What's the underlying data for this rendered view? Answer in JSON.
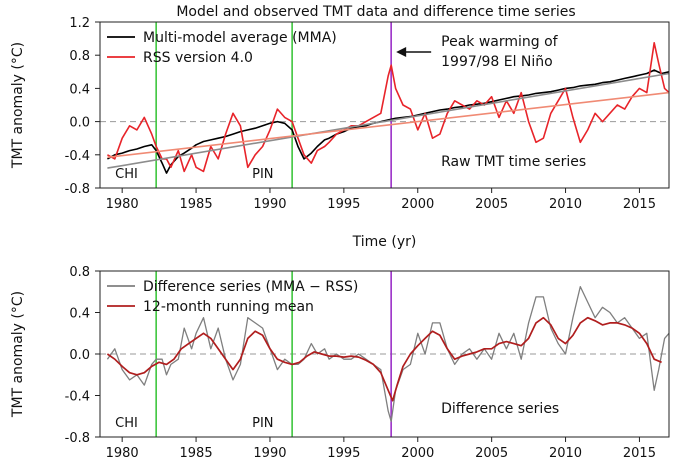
{
  "figure_title": "Model and observed TMT data and difference time series",
  "colors": {
    "mma": "#000000",
    "rss": "#e8242a",
    "trend_mma": "#8c8c8c",
    "trend_rss": "#f08a74",
    "difference": "#7f7f7f",
    "running_mean": "#b01e1e",
    "event_volcano": "#3ec63e",
    "event_elnino": "#9b30c8",
    "zero_line": "#9a9a9a"
  },
  "chart_data": [
    {
      "type": "line",
      "title": "Model and observed TMT data and difference time series",
      "xlabel": "Time (yr)",
      "ylabel": "TMT anomaly (°C)",
      "xlim": [
        1978.5,
        2017
      ],
      "ylim": [
        -0.8,
        1.2
      ],
      "xticks": [
        1980,
        1985,
        1990,
        1995,
        2000,
        2005,
        2010,
        2015
      ],
      "yticks": [
        "-0.8",
        "-0.4",
        "0.0",
        "0.4",
        "0.8",
        "1.2"
      ],
      "legend_position": "top-left",
      "panel_label": "Raw TMT time series",
      "annotation": {
        "line1": "Peak warming of",
        "line2": "1997/98 El Niño",
        "x": 1998.2
      },
      "event_lines": [
        {
          "label": "CHI",
          "x": 1982.3,
          "color": "event_volcano"
        },
        {
          "label": "PIN",
          "x": 1991.5,
          "color": "event_volcano"
        },
        {
          "label": "",
          "x": 1998.2,
          "color": "event_elnino"
        }
      ],
      "series": [
        {
          "name": "Multi-model average (MMA)",
          "color": "mma",
          "x": [
            1979.0,
            1979.5,
            1980.0,
            1980.5,
            1981.0,
            1981.5,
            1982.0,
            1982.3,
            1982.7,
            1983.0,
            1983.3,
            1983.8,
            1984.2,
            1984.7,
            1985.0,
            1985.5,
            1986.0,
            1986.5,
            1987.0,
            1987.5,
            1988.0,
            1988.5,
            1989.0,
            1989.5,
            1990.0,
            1990.5,
            1991.0,
            1991.5,
            1991.9,
            1992.3,
            1992.8,
            1993.2,
            1993.7,
            1994.0,
            1994.5,
            1995.0,
            1995.5,
            1996.0,
            1996.5,
            1997.0,
            1997.5,
            1998.0,
            1998.5,
            1999.0,
            1999.5,
            2000.0,
            2000.5,
            2001.0,
            2001.5,
            2002.0,
            2002.5,
            2003.0,
            2003.5,
            2004.0,
            2004.5,
            2005.0,
            2005.5,
            2006.0,
            2006.5,
            2007.0,
            2007.5,
            2008.0,
            2008.5,
            2009.0,
            2009.5,
            2010.0,
            2010.5,
            2011.0,
            2011.5,
            2012.0,
            2012.5,
            2013.0,
            2013.5,
            2014.0,
            2014.5,
            2015.0,
            2015.5,
            2016.0,
            2016.5,
            2017.0
          ],
          "y": [
            -0.45,
            -0.4,
            -0.38,
            -0.35,
            -0.33,
            -0.3,
            -0.28,
            -0.35,
            -0.5,
            -0.62,
            -0.52,
            -0.42,
            -0.38,
            -0.32,
            -0.28,
            -0.24,
            -0.22,
            -0.2,
            -0.18,
            -0.15,
            -0.12,
            -0.1,
            -0.08,
            -0.05,
            -0.02,
            0.0,
            -0.02,
            -0.1,
            -0.3,
            -0.45,
            -0.38,
            -0.3,
            -0.22,
            -0.2,
            -0.15,
            -0.12,
            -0.08,
            -0.06,
            -0.05,
            -0.02,
            0.0,
            0.02,
            0.04,
            0.05,
            0.06,
            0.08,
            0.1,
            0.12,
            0.14,
            0.15,
            0.17,
            0.18,
            0.2,
            0.21,
            0.22,
            0.24,
            0.26,
            0.28,
            0.3,
            0.31,
            0.32,
            0.34,
            0.35,
            0.36,
            0.38,
            0.4,
            0.41,
            0.43,
            0.44,
            0.45,
            0.47,
            0.48,
            0.5,
            0.52,
            0.54,
            0.56,
            0.58,
            0.62,
            0.58,
            0.6
          ]
        },
        {
          "name": "RSS version 4.0",
          "color": "rss",
          "x": [
            1979.0,
            1979.5,
            1980.0,
            1980.5,
            1981.0,
            1981.5,
            1982.0,
            1982.3,
            1982.7,
            1983.0,
            1983.3,
            1983.8,
            1984.2,
            1984.7,
            1985.0,
            1985.5,
            1986.0,
            1986.5,
            1987.0,
            1987.5,
            1988.0,
            1988.5,
            1989.0,
            1989.5,
            1990.0,
            1990.5,
            1991.0,
            1991.5,
            1991.9,
            1992.3,
            1992.8,
            1993.2,
            1993.7,
            1994.0,
            1994.5,
            1995.0,
            1995.5,
            1996.0,
            1996.5,
            1997.0,
            1997.5,
            1998.0,
            1998.2,
            1998.5,
            1999.0,
            1999.5,
            2000.0,
            2000.5,
            2001.0,
            2001.5,
            2002.0,
            2002.5,
            2003.0,
            2003.5,
            2004.0,
            2004.5,
            2005.0,
            2005.5,
            2006.0,
            2006.5,
            2007.0,
            2007.5,
            2008.0,
            2008.5,
            2009.0,
            2009.5,
            2010.0,
            2010.5,
            2011.0,
            2011.5,
            2012.0,
            2012.5,
            2013.0,
            2013.5,
            2014.0,
            2014.5,
            2015.0,
            2015.5,
            2016.0,
            2016.3,
            2016.7,
            2017.0
          ],
          "y": [
            -0.4,
            -0.45,
            -0.2,
            -0.05,
            -0.1,
            0.05,
            -0.15,
            -0.3,
            -0.45,
            -0.45,
            -0.55,
            -0.35,
            -0.6,
            -0.4,
            -0.55,
            -0.6,
            -0.3,
            -0.45,
            -0.15,
            0.1,
            -0.05,
            -0.55,
            -0.4,
            -0.3,
            -0.1,
            0.15,
            0.05,
            0.0,
            -0.2,
            -0.4,
            -0.5,
            -0.35,
            -0.3,
            -0.25,
            -0.15,
            -0.1,
            -0.05,
            -0.05,
            0.0,
            0.05,
            0.1,
            0.55,
            0.68,
            0.4,
            0.2,
            0.15,
            -0.1,
            0.1,
            -0.2,
            -0.15,
            0.1,
            0.25,
            0.2,
            0.15,
            0.25,
            0.2,
            0.3,
            0.05,
            0.25,
            0.1,
            0.35,
            0.0,
            -0.25,
            -0.2,
            0.1,
            0.25,
            0.4,
            0.05,
            -0.25,
            -0.1,
            0.1,
            0.0,
            0.1,
            0.2,
            0.15,
            0.3,
            0.4,
            0.35,
            0.95,
            0.7,
            0.4,
            0.35
          ]
        },
        {
          "name": "",
          "color": "trend_mma",
          "x": [
            1979.0,
            2017.0
          ],
          "y": [
            -0.56,
            0.58
          ]
        },
        {
          "name": "",
          "color": "trend_rss",
          "x": [
            1979.0,
            2017.0
          ],
          "y": [
            -0.43,
            0.35
          ]
        }
      ]
    },
    {
      "type": "line",
      "title": "",
      "xlabel": "",
      "ylabel": "TMT anomaly (°C)",
      "xlim": [
        1978.5,
        2017
      ],
      "ylim": [
        -0.8,
        0.8
      ],
      "xticks": [
        1980,
        1985,
        1990,
        1995,
        2000,
        2005,
        2010,
        2015
      ],
      "yticks": [
        "-0.8",
        "-0.4",
        "0.0",
        "0.4",
        "0.8"
      ],
      "legend_position": "top-left",
      "panel_label": "Difference series",
      "event_lines": [
        {
          "label": "CHI",
          "x": 1982.3,
          "color": "event_volcano"
        },
        {
          "label": "PIN",
          "x": 1991.5,
          "color": "event_volcano"
        },
        {
          "label": "",
          "x": 1998.2,
          "color": "event_elnino"
        }
      ],
      "series": [
        {
          "name": "Difference series (MMA − RSS)",
          "color": "difference",
          "x": [
            1979.0,
            1979.5,
            1980.0,
            1980.5,
            1981.0,
            1981.5,
            1982.0,
            1982.3,
            1982.7,
            1983.0,
            1983.3,
            1983.8,
            1984.2,
            1984.7,
            1985.0,
            1985.5,
            1986.0,
            1986.5,
            1987.0,
            1987.5,
            1988.0,
            1988.5,
            1989.0,
            1989.5,
            1990.0,
            1990.5,
            1991.0,
            1991.5,
            1991.9,
            1992.3,
            1992.8,
            1993.2,
            1993.7,
            1994.0,
            1994.5,
            1995.0,
            1995.5,
            1996.0,
            1996.5,
            1997.0,
            1997.5,
            1998.0,
            1998.2,
            1998.5,
            1999.0,
            1999.5,
            2000.0,
            2000.5,
            2001.0,
            2001.5,
            2002.0,
            2002.5,
            2003.0,
            2003.5,
            2004.0,
            2004.5,
            2005.0,
            2005.5,
            2006.0,
            2006.5,
            2007.0,
            2007.5,
            2008.0,
            2008.5,
            2009.0,
            2009.5,
            2010.0,
            2010.5,
            2011.0,
            2011.5,
            2012.0,
            2012.5,
            2013.0,
            2013.5,
            2014.0,
            2014.5,
            2015.0,
            2015.5,
            2016.0,
            2016.3,
            2016.7,
            2017.0
          ],
          "y": [
            -0.05,
            0.05,
            -0.15,
            -0.25,
            -0.2,
            -0.3,
            -0.1,
            -0.05,
            -0.05,
            -0.2,
            -0.1,
            -0.05,
            0.25,
            0.05,
            0.2,
            0.35,
            0.05,
            0.25,
            -0.05,
            -0.25,
            -0.1,
            0.35,
            0.3,
            0.25,
            0.05,
            -0.15,
            -0.05,
            -0.1,
            -0.1,
            -0.05,
            0.1,
            0.0,
            0.05,
            -0.05,
            0.0,
            -0.05,
            -0.05,
            0.0,
            -0.05,
            -0.1,
            -0.15,
            -0.55,
            -0.65,
            -0.35,
            -0.15,
            -0.1,
            0.2,
            0.0,
            0.3,
            0.3,
            0.05,
            -0.1,
            0.0,
            0.05,
            -0.05,
            0.05,
            -0.05,
            0.2,
            0.05,
            0.2,
            -0.05,
            0.3,
            0.55,
            0.55,
            0.25,
            0.1,
            0.0,
            0.35,
            0.65,
            0.5,
            0.35,
            0.45,
            0.4,
            0.3,
            0.35,
            0.25,
            0.15,
            0.2,
            -0.35,
            -0.15,
            0.15,
            0.2
          ]
        },
        {
          "name": "12-month running mean",
          "color": "running_mean",
          "x": [
            1979.0,
            1979.5,
            1980.0,
            1980.5,
            1981.0,
            1981.5,
            1982.0,
            1982.5,
            1983.0,
            1983.5,
            1984.0,
            1984.5,
            1985.0,
            1985.5,
            1986.0,
            1986.5,
            1987.0,
            1987.5,
            1988.0,
            1988.5,
            1989.0,
            1989.5,
            1990.0,
            1990.5,
            1991.0,
            1991.5,
            1992.0,
            1992.5,
            1993.0,
            1993.5,
            1994.0,
            1994.5,
            1995.0,
            1995.5,
            1996.0,
            1996.5,
            1997.0,
            1997.5,
            1998.0,
            1998.3,
            1998.6,
            1999.0,
            1999.5,
            2000.0,
            2000.5,
            2001.0,
            2001.5,
            2002.0,
            2002.5,
            2003.0,
            2003.5,
            2004.0,
            2004.5,
            2005.0,
            2005.5,
            2006.0,
            2006.5,
            2007.0,
            2007.5,
            2008.0,
            2008.5,
            2009.0,
            2009.5,
            2010.0,
            2010.5,
            2011.0,
            2011.5,
            2012.0,
            2012.5,
            2013.0,
            2013.5,
            2014.0,
            2014.5,
            2015.0,
            2015.5,
            2016.0,
            2016.5
          ],
          "y": [
            0.0,
            -0.05,
            -0.12,
            -0.18,
            -0.2,
            -0.18,
            -0.12,
            -0.08,
            -0.1,
            -0.05,
            0.05,
            0.1,
            0.15,
            0.2,
            0.15,
            0.05,
            -0.05,
            -0.15,
            -0.05,
            0.15,
            0.22,
            0.18,
            0.05,
            -0.05,
            -0.08,
            -0.1,
            -0.08,
            -0.02,
            0.02,
            0.0,
            -0.02,
            -0.02,
            -0.03,
            -0.02,
            -0.03,
            -0.06,
            -0.1,
            -0.18,
            -0.35,
            -0.45,
            -0.3,
            -0.12,
            0.0,
            0.08,
            0.15,
            0.22,
            0.18,
            0.05,
            -0.05,
            -0.02,
            0.0,
            0.02,
            0.05,
            0.05,
            0.1,
            0.12,
            0.1,
            0.08,
            0.15,
            0.3,
            0.35,
            0.28,
            0.15,
            0.1,
            0.18,
            0.3,
            0.35,
            0.32,
            0.28,
            0.3,
            0.3,
            0.28,
            0.25,
            0.2,
            0.1,
            -0.05,
            -0.08
          ]
        }
      ]
    }
  ]
}
